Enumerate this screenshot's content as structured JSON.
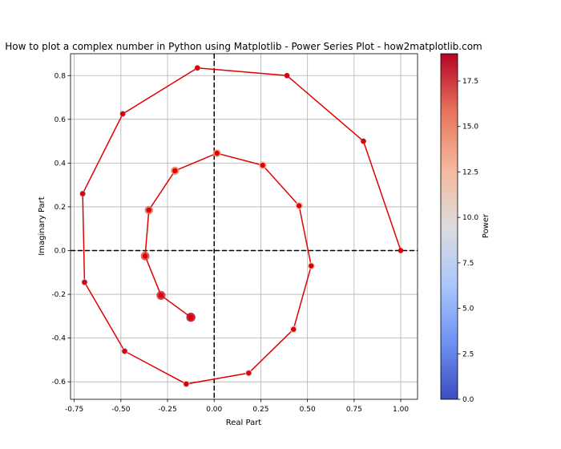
{
  "chart_data": {
    "type": "scatter",
    "title": "How to plot a complex number in Python using Matplotlib - Power Series Plot - how2matplotlib.com",
    "xlabel": "Real Part",
    "ylabel": "Imaginary Part",
    "xlim": [
      -0.77,
      1.09
    ],
    "ylim": [
      -0.68,
      0.9
    ],
    "xticks": [
      -0.75,
      -0.5,
      -0.25,
      0.0,
      0.25,
      0.5,
      0.75,
      1.0
    ],
    "xtick_labels": [
      "-0.75",
      "-0.50",
      "-0.25",
      "0.00",
      "0.25",
      "0.50",
      "0.75",
      "1.00"
    ],
    "yticks": [
      -0.6,
      -0.4,
      -0.2,
      0.0,
      0.2,
      0.4,
      0.6,
      0.8
    ],
    "ytick_labels": [
      "-0.6",
      "-0.4",
      "-0.2",
      "0.0",
      "0.2",
      "0.4",
      "0.6",
      "0.8"
    ],
    "grid": true,
    "reference_lines": {
      "x": 0,
      "y": 0,
      "style": "dashed",
      "color": "#000000"
    },
    "line_color": "#e00000",
    "colormap": "coolwarm",
    "colormap_stops": [
      "#3b4cc0",
      "#6f92f3",
      "#aac7fd",
      "#dddcdc",
      "#f6b89c",
      "#e7745b",
      "#b40426"
    ],
    "colorbar": {
      "label": "Power",
      "range": [
        0,
        19
      ],
      "ticks": [
        0.0,
        2.5,
        5.0,
        7.5,
        10.0,
        12.5,
        15.0,
        17.5
      ],
      "tick_labels": [
        "0.0",
        "2.5",
        "5.0",
        "7.5",
        "10.0",
        "12.5",
        "15.0",
        "17.5"
      ]
    },
    "points": [
      {
        "power": 0,
        "x": 1.0,
        "y": 0.0
      },
      {
        "power": 1,
        "x": 0.8,
        "y": 0.5
      },
      {
        "power": 2,
        "x": 0.39,
        "y": 0.8
      },
      {
        "power": 3,
        "x": -0.09,
        "y": 0.835
      },
      {
        "power": 4,
        "x": -0.49,
        "y": 0.625
      },
      {
        "power": 5,
        "x": -0.705,
        "y": 0.26
      },
      {
        "power": 6,
        "x": -0.695,
        "y": -0.145
      },
      {
        "power": 7,
        "x": -0.48,
        "y": -0.46
      },
      {
        "power": 8,
        "x": -0.15,
        "y": -0.61
      },
      {
        "power": 9,
        "x": 0.185,
        "y": -0.56
      },
      {
        "power": 10,
        "x": 0.425,
        "y": -0.36
      },
      {
        "power": 11,
        "x": 0.52,
        "y": -0.07
      },
      {
        "power": 12,
        "x": 0.455,
        "y": 0.205
      },
      {
        "power": 13,
        "x": 0.26,
        "y": 0.39
      },
      {
        "power": 14,
        "x": 0.015,
        "y": 0.445
      },
      {
        "power": 15,
        "x": -0.21,
        "y": 0.365
      },
      {
        "power": 16,
        "x": -0.35,
        "y": 0.185
      },
      {
        "power": 17,
        "x": -0.37,
        "y": -0.025
      },
      {
        "power": 18,
        "x": -0.285,
        "y": -0.205
      },
      {
        "power": 19,
        "x": -0.125,
        "y": -0.305
      }
    ]
  }
}
